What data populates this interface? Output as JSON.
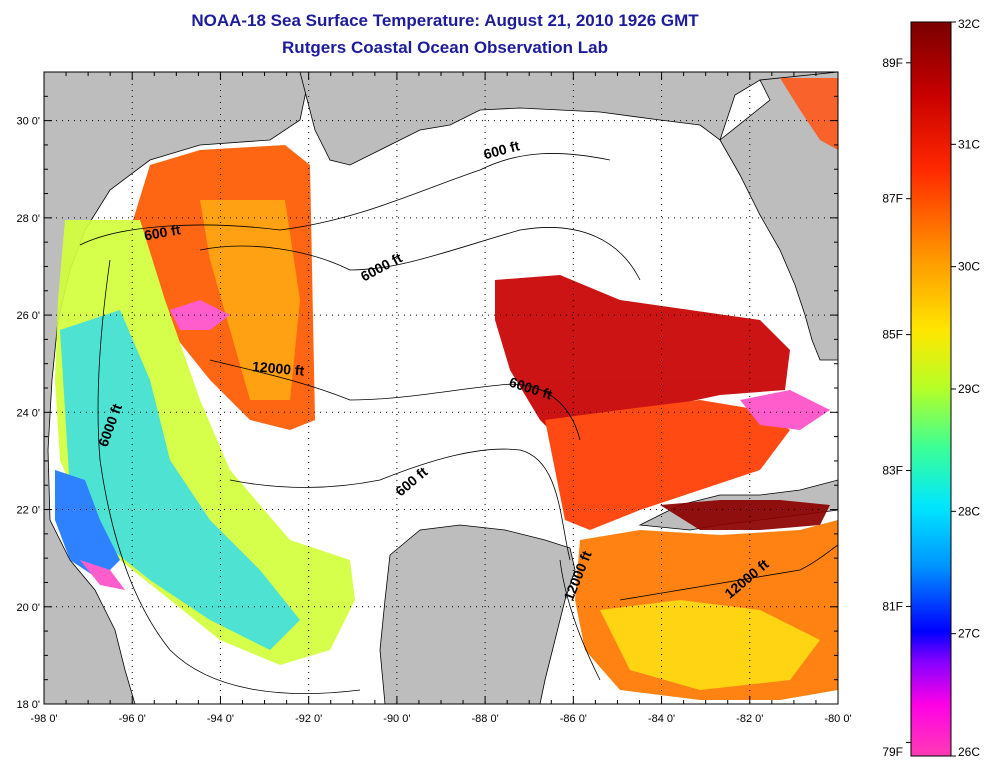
{
  "header": {
    "title": "NOAA-18 Sea Surface Temperature:  August 21, 2010 1926 GMT",
    "subtitle": "Rutgers Coastal Ocean Observation Lab"
  },
  "map": {
    "lon_range": [
      -98,
      -80
    ],
    "lat_range": [
      18,
      31
    ],
    "lon_ticks": [
      {
        "value": -98,
        "label": "-98 0'"
      },
      {
        "value": -96,
        "label": "-96 0'"
      },
      {
        "value": -94,
        "label": "-94 0'"
      },
      {
        "value": -92,
        "label": "-92 0'"
      },
      {
        "value": -90,
        "label": "-90 0'"
      },
      {
        "value": -88,
        "label": "-88 0'"
      },
      {
        "value": -86,
        "label": "-86 0'"
      },
      {
        "value": -84,
        "label": "-84 0'"
      },
      {
        "value": -82,
        "label": "-82 0'"
      },
      {
        "value": -80,
        "label": "-80 0'"
      }
    ],
    "lat_ticks": [
      {
        "value": 18,
        "label": "18 0'"
      },
      {
        "value": 20,
        "label": "20 0'"
      },
      {
        "value": 22,
        "label": "22 0'"
      },
      {
        "value": 24,
        "label": "24 0'"
      },
      {
        "value": 26,
        "label": "26 0'"
      },
      {
        "value": 28,
        "label": "28 0'"
      },
      {
        "value": 30,
        "label": "30 0'"
      }
    ],
    "contour_labels": [
      {
        "text": "600 ft",
        "lon": -95.3,
        "lat": 27.6,
        "angle": -10
      },
      {
        "text": "600 ft",
        "lon": -87.6,
        "lat": 29.3,
        "angle": -15
      },
      {
        "text": "6000 ft",
        "lon": -90.3,
        "lat": 26.9,
        "angle": -28
      },
      {
        "text": "6000 ft",
        "lon": -96.4,
        "lat": 23.7,
        "angle": -70
      },
      {
        "text": "12000 ft",
        "lon": -92.7,
        "lat": 24.8,
        "angle": 5
      },
      {
        "text": "6000 ft",
        "lon": -87.0,
        "lat": 24.4,
        "angle": 18
      },
      {
        "text": "600 ft",
        "lon": -89.6,
        "lat": 22.5,
        "angle": -40
      },
      {
        "text": "12000 ft",
        "lon": -85.8,
        "lat": 20.6,
        "angle": -68
      },
      {
        "text": "12000 ft",
        "lon": -82.0,
        "lat": 20.5,
        "angle": -40
      }
    ],
    "colors": {
      "land": "#bdbdbd",
      "cloud": "#ffffff",
      "grid": "#000000"
    }
  },
  "colorbar": {
    "c_labels": [
      {
        "value": 32,
        "label": "32C"
      },
      {
        "value": 31,
        "label": "31C"
      },
      {
        "value": 30,
        "label": "30C"
      },
      {
        "value": 29,
        "label": "29C"
      },
      {
        "value": 28,
        "label": "28C"
      },
      {
        "value": 27,
        "label": "27C"
      },
      {
        "value": 26,
        "label": "26C"
      }
    ],
    "f_labels": [
      {
        "value": 89,
        "label": "89F"
      },
      {
        "value": 87,
        "label": "87F"
      },
      {
        "value": 85,
        "label": "85F"
      },
      {
        "value": 83,
        "label": "83F"
      },
      {
        "value": 81,
        "label": "81F"
      },
      {
        "value": 79,
        "label": "79F"
      }
    ]
  }
}
